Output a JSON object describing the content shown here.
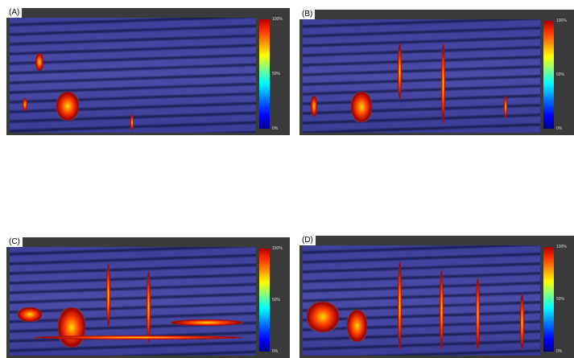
{
  "panels": [
    {
      "label": "(A)",
      "colorbar": {
        "ticks": [
          "100%",
          "50%",
          "0%"
        ]
      }
    },
    {
      "label": "(B)",
      "colorbar": {
        "ticks": [
          "100%",
          "50%",
          "0%"
        ]
      }
    },
    {
      "label": "(C)",
      "colorbar": {
        "ticks": [
          "100%",
          "50%",
          "0%"
        ]
      }
    },
    {
      "label": "(D)",
      "colorbar": {
        "ticks": [
          "100%",
          "50%",
          "0%"
        ]
      }
    }
  ]
}
